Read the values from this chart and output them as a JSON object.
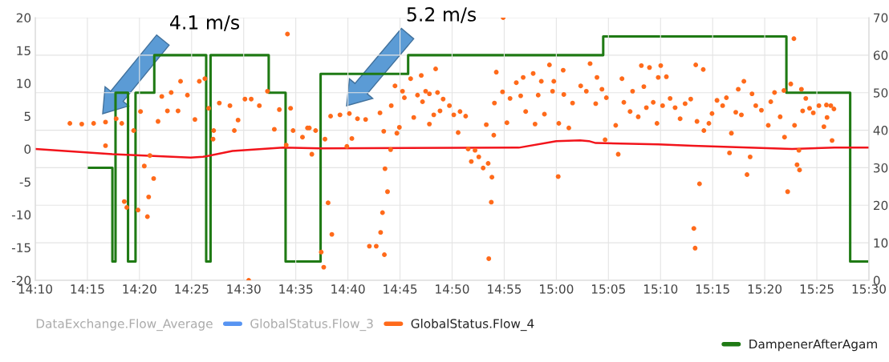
{
  "chart_data": {
    "type": "scatter",
    "xlim": [
      14.1667,
      15.5
    ],
    "xticks": [
      {
        "value": 14.1667,
        "label": "14:10"
      },
      {
        "value": 14.25,
        "label": "14:15"
      },
      {
        "value": 14.3333,
        "label": "14:20"
      },
      {
        "value": 14.4167,
        "label": "14:25"
      },
      {
        "value": 14.5,
        "label": "14:30"
      },
      {
        "value": 14.5833,
        "label": "14:35"
      },
      {
        "value": 14.6667,
        "label": "14:40"
      },
      {
        "value": 14.75,
        "label": "14:45"
      },
      {
        "value": 14.8333,
        "label": "14:50"
      },
      {
        "value": 14.9167,
        "label": "14:55"
      },
      {
        "value": 15.0,
        "label": "15:00"
      },
      {
        "value": 15.0833,
        "label": "15:05"
      },
      {
        "value": 15.1667,
        "label": "15:10"
      },
      {
        "value": 15.25,
        "label": "15:15"
      },
      {
        "value": 15.3333,
        "label": "15:20"
      },
      {
        "value": 15.4167,
        "label": "15:25"
      },
      {
        "value": 15.5,
        "label": "15:30"
      }
    ],
    "ylim": [
      -20,
      20
    ],
    "yticks": [
      -20,
      -15,
      -10,
      -5,
      0,
      5,
      10,
      15,
      20
    ],
    "y2lim": [
      0,
      70
    ],
    "y2ticks": [
      0,
      10,
      20,
      30,
      40,
      50,
      60,
      70
    ],
    "grid": true,
    "legend": "bottom",
    "annotations": [
      "4.1 m/s",
      "5.2 m/s"
    ],
    "series": [
      {
        "name": "DataExchange.Flow_Average",
        "color": null
      },
      {
        "name": "GlobalStatus.Flow_3",
        "color": "#5794f2"
      },
      {
        "name": "GlobalStatus.Flow_4",
        "color": "#ff6a1a",
        "marker": "circle",
        "x": [
          14.222,
          14.241,
          14.26,
          14.279,
          14.296,
          14.305,
          14.279,
          14.309,
          14.313,
          14.324,
          14.331,
          14.346,
          14.335,
          14.35,
          14.341,
          14.356,
          14.348,
          14.363,
          14.369,
          14.378,
          14.384,
          14.395,
          14.399,
          14.41,
          14.422,
          14.429,
          14.438,
          14.444,
          14.452,
          14.451,
          14.461,
          14.478,
          14.485,
          14.491,
          14.502,
          14.512,
          14.525,
          14.538,
          14.549,
          14.557,
          14.568,
          14.575,
          14.579,
          14.594,
          14.605,
          14.609,
          14.508,
          14.57,
          14.602,
          14.615,
          14.63,
          14.624,
          14.628,
          14.635,
          14.641,
          14.639,
          14.654,
          14.669,
          14.682,
          14.695,
          14.665,
          14.673,
          14.701,
          14.712,
          14.725,
          14.719,
          14.722,
          14.73,
          14.726,
          14.735,
          14.718,
          14.724,
          14.736,
          14.742,
          14.745,
          14.749,
          14.754,
          14.757,
          14.767,
          14.772,
          14.778,
          14.784,
          14.791,
          14.786,
          14.797,
          14.797,
          14.807,
          14.804,
          14.81,
          14.819,
          14.814,
          14.829,
          14.836,
          14.843,
          14.846,
          14.855,
          14.859,
          14.864,
          14.87,
          14.876,
          14.883,
          14.891,
          14.897,
          14.896,
          14.892,
          14.888,
          14.9,
          14.904,
          14.915,
          14.901,
          14.914,
          14.921,
          14.926,
          14.936,
          14.947,
          14.943,
          14.951,
          14.963,
          14.966,
          14.971,
          14.976,
          14.981,
          14.989,
          14.994,
          14.996,
          15.004,
          15.003,
          15.011,
          15.012,
          15.02,
          15.026,
          15.039,
          15.048,
          15.054,
          15.063,
          15.065,
          15.073,
          15.078,
          15.08,
          15.095,
          15.099,
          15.105,
          15.108,
          15.118,
          15.122,
          15.131,
          15.136,
          15.14,
          15.144,
          15.149,
          15.155,
          15.161,
          15.163,
          15.167,
          15.17,
          15.176,
          15.182,
          15.19,
          15.198,
          15.206,
          15.215,
          15.223,
          15.225,
          15.22,
          15.222,
          15.229,
          15.235,
          15.236,
          15.244,
          15.249,
          15.257,
          15.266,
          15.272,
          15.277,
          15.28,
          15.287,
          15.291,
          15.296,
          15.3,
          15.305,
          15.31,
          15.313,
          15.319,
          15.328,
          15.339,
          15.343,
          15.349,
          15.358,
          15.364,
          15.365,
          15.37,
          15.375,
          15.38,
          15.381,
          15.385,
          15.388,
          15.389,
          15.392,
          15.394,
          15.399,
          15.405,
          15.411,
          15.42,
          15.428,
          15.432,
          15.433,
          15.439,
          15.441,
          15.444
        ],
        "values": [
          3.9,
          3.8,
          3.9,
          4.1,
          4.6,
          3.9,
          0.5,
          -8.0,
          -8.9,
          2.8,
          -9.3,
          -10.3,
          5.7,
          -1.0,
          -2.6,
          -4.5,
          -7.3,
          4.2,
          8.0,
          5.8,
          8.6,
          5.8,
          10.3,
          8.2,
          4.5,
          10.3,
          10.7,
          6.2,
          2.8,
          1.5,
          7.0,
          6.6,
          2.8,
          4.4,
          7.6,
          7.6,
          6.6,
          8.8,
          3.0,
          6.0,
          0.6,
          6.2,
          2.8,
          1.8,
          3.2,
          -0.8,
          -20,
          17.5,
          3.2,
          2.8,
          1.5,
          -15.7,
          -18.0,
          -8.2,
          -13.0,
          5.0,
          5.2,
          5.4,
          4.6,
          4.5,
          0.4,
          1.6,
          -14.8,
          -14.8,
          -16.1,
          -12.7,
          -9.7,
          -6.5,
          -3.0,
          -0.1,
          5.5,
          2.7,
          6.6,
          9.6,
          2.4,
          3.3,
          8.8,
          7.8,
          10.7,
          4.8,
          8.2,
          11.2,
          8.8,
          7.2,
          3.8,
          8.4,
          12.2,
          5.2,
          8.6,
          7.6,
          5.8,
          6.6,
          5.2,
          2.5,
          5.7,
          5.0,
          0.0,
          -1.9,
          -0.2,
          -1.2,
          -2.9,
          -2.2,
          -4.3,
          -8.1,
          -16.7,
          3.7,
          2.1,
          11.7,
          20,
          7.0,
          8.7,
          4.0,
          7.7,
          10.1,
          10.9,
          8.1,
          5.7,
          11.5,
          3.8,
          8.2,
          10.3,
          5.3,
          12.8,
          8.8,
          10.3,
          3.9,
          -4.2,
          12.0,
          8.3,
          3.2,
          7.0,
          9.6,
          8.8,
          13.0,
          6.9,
          10.9,
          9.1,
          1.4,
          7.8,
          3.6,
          -0.8,
          10.7,
          7.1,
          5.7,
          8.8,
          4.9,
          12.7,
          9.5,
          6.3,
          12.4,
          7.1,
          3.9,
          10.9,
          12.7,
          6.6,
          11.0,
          7.7,
          6.3,
          4.6,
          6.9,
          7.6,
          12.8,
          4.2,
          -12.1,
          -15.1,
          -5.3,
          12.1,
          2.8,
          3.9,
          5.4,
          7.4,
          6.6,
          7.8,
          -0.6,
          2.4,
          5.6,
          9.1,
          5.2,
          10.3,
          -3.9,
          -1.2,
          8.4,
          6.6,
          5.9,
          3.6,
          7.2,
          8.6,
          4.9,
          8.9,
          1.8,
          -6.5,
          9.9,
          16.8,
          3.6,
          -2.4,
          -0.2,
          -3.2,
          9.1,
          5.8,
          7.7,
          6.2,
          5.5,
          6.6,
          3.4,
          6.7,
          4.8,
          6.6,
          1.3,
          6.1
        ]
      },
      {
        "color": "#f2141b",
        "type": "line",
        "x": [
          14.1667,
          14.29,
          14.415,
          14.435,
          14.482,
          14.563,
          14.623,
          14.94,
          15.0,
          15.038,
          15.052,
          15.063,
          15.163,
          15.218,
          15.377,
          15.445,
          15.5
        ],
        "values": [
          0.0,
          -0.8,
          -1.3,
          -1.2,
          -0.3,
          0.2,
          0.1,
          0.2,
          1.2,
          1.3,
          1.2,
          0.9,
          0.7,
          0.5,
          0.0,
          0.2,
          0.2
        ]
      },
      {
        "name": "DampenerAfterAgam",
        "color": "#1f7a14",
        "type": "step",
        "axis": "y2",
        "x": [
          14.252,
          14.29,
          14.295,
          14.315,
          14.327,
          14.357,
          14.44,
          14.447,
          14.54,
          14.567,
          14.623,
          14.763,
          15.075,
          15.368,
          15.47,
          15.498
        ],
        "values": [
          30,
          5,
          50,
          5,
          50,
          60,
          5,
          60,
          50,
          5,
          55,
          60,
          65,
          50,
          5,
          5
        ]
      }
    ]
  }
}
